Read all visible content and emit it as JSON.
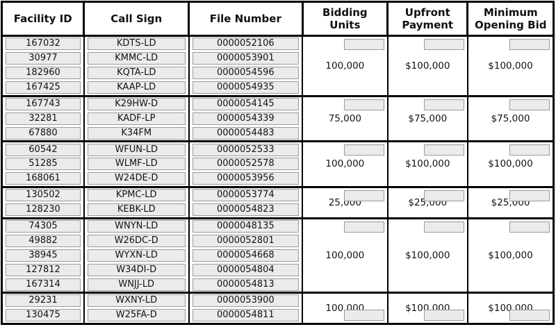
{
  "colors": {
    "table_border": "#000000",
    "cell_fill": "#ebebeb",
    "cell_border": "#9a9a9a",
    "text": "#111111"
  },
  "table": {
    "columns": [
      {
        "key": "facility-id",
        "label": "Facility ID"
      },
      {
        "key": "call-sign",
        "label": "Call Sign"
      },
      {
        "key": "file-number",
        "label": "File Number"
      },
      {
        "key": "bidding-units",
        "label": "Bidding Units"
      },
      {
        "key": "upfront-payment",
        "label": "Upfront Payment"
      },
      {
        "key": "minimum-opening-bid",
        "label": "Minimum Opening Bid"
      }
    ],
    "groups": [
      {
        "rows": [
          {
            "facility_id": "167032",
            "call_sign": "KDTS-LD",
            "file_number": "0000052106"
          },
          {
            "facility_id": "30977",
            "call_sign": "KMMC-LD",
            "file_number": "0000053901"
          },
          {
            "facility_id": "182960",
            "call_sign": "KQTA-LD",
            "file_number": "0000054596"
          },
          {
            "facility_id": "167425",
            "call_sign": "KAAP-LD",
            "file_number": "0000054935"
          }
        ],
        "bidding_units": "100,000",
        "upfront_payment": "$100,000",
        "minimum_opening_bid": "$100,000"
      },
      {
        "rows": [
          {
            "facility_id": "167743",
            "call_sign": "K29HW-D",
            "file_number": "0000054145"
          },
          {
            "facility_id": "32281",
            "call_sign": "KADF-LP",
            "file_number": "0000054339"
          },
          {
            "facility_id": "67880",
            "call_sign": "K34FM",
            "file_number": "0000054483"
          }
        ],
        "bidding_units": "75,000",
        "upfront_payment": "$75,000",
        "minimum_opening_bid": "$75,000"
      },
      {
        "rows": [
          {
            "facility_id": "60542",
            "call_sign": "WFUN-LD",
            "file_number": "0000052533"
          },
          {
            "facility_id": "51285",
            "call_sign": "WLMF-LD",
            "file_number": "0000052578"
          },
          {
            "facility_id": "168061",
            "call_sign": "W24DE-D",
            "file_number": "0000053956"
          }
        ],
        "bidding_units": "100,000",
        "upfront_payment": "$100,000",
        "minimum_opening_bid": "$100,000"
      },
      {
        "rows": [
          {
            "facility_id": "130502",
            "call_sign": "KPMC-LD",
            "file_number": "0000053774"
          },
          {
            "facility_id": "128230",
            "call_sign": "KEBK-LD",
            "file_number": "0000054823"
          }
        ],
        "bidding_units": "25,000",
        "upfront_payment": "$25,000",
        "minimum_opening_bid": "$25,000"
      },
      {
        "rows": [
          {
            "facility_id": "74305",
            "call_sign": "WNYN-LD",
            "file_number": "0000048135"
          },
          {
            "facility_id": "49882",
            "call_sign": "W26DC-D",
            "file_number": "0000052801"
          },
          {
            "facility_id": "38945",
            "call_sign": "WYXN-LD",
            "file_number": "0000054668"
          },
          {
            "facility_id": "127812",
            "call_sign": "W34DI-D",
            "file_number": "0000054804"
          },
          {
            "facility_id": "167314",
            "call_sign": "WNJJ-LD",
            "file_number": "0000054813"
          }
        ],
        "bidding_units": "100,000",
        "upfront_payment": "$100,000",
        "minimum_opening_bid": "$100,000"
      },
      {
        "rows": [
          {
            "facility_id": "29231",
            "call_sign": "WXNY-LD",
            "file_number": "0000053900"
          },
          {
            "facility_id": "130475",
            "call_sign": "W25FA-D",
            "file_number": "0000054811"
          }
        ],
        "bidding_units": "100,000",
        "upfront_payment": "$100,000",
        "minimum_opening_bid": "$100,000"
      }
    ]
  }
}
